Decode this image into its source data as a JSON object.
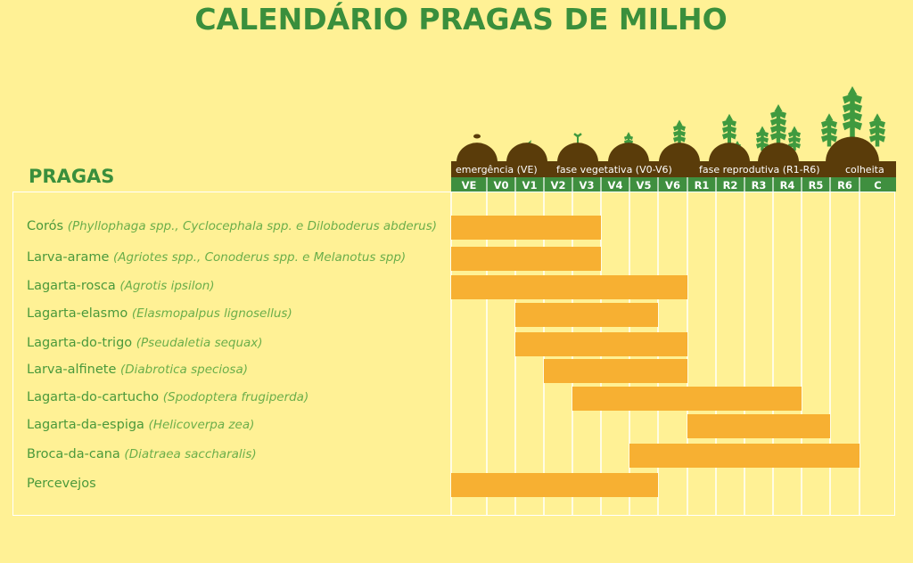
{
  "title": "CALENDÁRIO PRAGAS DE MILHO",
  "rows_header": "PRAGAS",
  "colors": {
    "background": "#fff195",
    "title": "#3a8f3c",
    "bar": "#f7b032",
    "soil": "#5a3c0a",
    "stage_band": "#3f8f3f",
    "plant": "#3f9a3f"
  },
  "chart_data": {
    "type": "gantt",
    "categories": [
      "VE",
      "V0",
      "V1",
      "V2",
      "V3",
      "V4",
      "V5",
      "V6",
      "R1",
      "R2",
      "R3",
      "R4",
      "R5",
      "R6",
      "C"
    ],
    "phase_labels": [
      {
        "label": "emergência (VE)"
      },
      {
        "label": "fase vegetativa (V0-V6)"
      },
      {
        "label": "fase reprodutiva (R1-R6)"
      },
      {
        "label": "colheita"
      }
    ],
    "series": [
      {
        "name": "Corós",
        "scientific": "(Phyllophaga spp., Cyclocephala spp. e Diloboderus abderus)",
        "start": "VE",
        "end": "V3"
      },
      {
        "name": "Larva-arame",
        "scientific": "(Agriotes spp., Conoderus spp. e Melanotus spp)",
        "start": "VE",
        "end": "V3"
      },
      {
        "name": "Lagarta-rosca",
        "scientific": "(Agrotis ipsilon)",
        "start": "VE",
        "end": "V6"
      },
      {
        "name": "Lagarta-elasmo",
        "scientific": "(Elasmopalpus lignosellus)",
        "start": "V1",
        "end": "V5"
      },
      {
        "name": "Lagarta-do-trigo",
        "scientific": "(Pseudaletia sequax)",
        "start": "V1",
        "end": "V6"
      },
      {
        "name": "Larva-alfinete",
        "scientific": "(Diabrotica speciosa)",
        "start": "V2",
        "end": "V6"
      },
      {
        "name": "Lagarta-do-cartucho",
        "scientific": "(Spodoptera frugiperda)",
        "start": "V3",
        "end": "R4"
      },
      {
        "name": "Lagarta-da-espiga",
        "scientific": "(Helicoverpa zea)",
        "start": "R1",
        "end": "R5"
      },
      {
        "name": "Broca-da-cana",
        "scientific": "(Diatraea saccharalis)",
        "start": "V5",
        "end": "R6"
      },
      {
        "name": "Percevejos",
        "scientific": "",
        "start": "VE",
        "end": "V5"
      }
    ]
  }
}
